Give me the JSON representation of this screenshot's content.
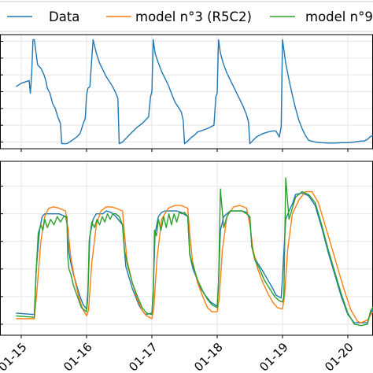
{
  "chart_data": [
    {
      "type": "line",
      "title": "",
      "xlabel": "",
      "ylabel": "",
      "x_ticks": [
        "01-15",
        "01-16",
        "01-17",
        "01-18",
        "01-19",
        "01-20"
      ],
      "grid": true,
      "legend": {
        "placement": "top",
        "entries": [
          "Data",
          "model n°3 (R5C2)",
          "model n°9"
        ]
      },
      "series": [
        {
          "name": "Data",
          "color": "#1f77b4",
          "x": [
            -0.08,
            0,
            0.12,
            0.14,
            0.16,
            0.18,
            0.2,
            0.25,
            0.3,
            0.35,
            0.38,
            0.4,
            0.44,
            0.48,
            0.52,
            0.56,
            0.6,
            0.62,
            0.7,
            0.78,
            0.85,
            0.9,
            0.95,
            0.98,
            1,
            1.02,
            1.05,
            1.1,
            1.15,
            1.2,
            1.25,
            1.3,
            1.35,
            1.4,
            1.45,
            1.48,
            1.5,
            1.55,
            1.6,
            1.65,
            1.7,
            1.78,
            1.85,
            1.9,
            1.95,
            1.98,
            2,
            2.02,
            2.05,
            2.1,
            2.15,
            2.2,
            2.25,
            2.3,
            2.35,
            2.4,
            2.45,
            2.48,
            2.5,
            2.55,
            2.6,
            2.65,
            2.7,
            2.78,
            2.85,
            2.9,
            2.95,
            2.98,
            3,
            3.02,
            3.05,
            3.1,
            3.15,
            3.2,
            3.25,
            3.3,
            3.35,
            3.4,
            3.45,
            3.48,
            3.5,
            3.55,
            3.6,
            3.65,
            3.7,
            3.78,
            3.85,
            3.9,
            3.95,
            3.98,
            4,
            4.05,
            4.1,
            4.15,
            4.2,
            4.25,
            4.3,
            4.35,
            4.4,
            4.5,
            4.6,
            4.7,
            4.8,
            4.9,
            5,
            5.1,
            5.2,
            5.25,
            5.3,
            5.35,
            5.45
          ],
          "y": [
            -0.1,
            0,
            0.08,
            -0.3,
            0.3,
            1.3,
            1.3,
            0.55,
            0.45,
            0.25,
            0.05,
            -0.15,
            -0.3,
            -0.6,
            -0.75,
            -1.0,
            -1.2,
            -1.8,
            -1.8,
            -1.7,
            -1.6,
            -1.5,
            -1.2,
            -1.05,
            -0.35,
            -0.15,
            -0.1,
            1.3,
            0.9,
            0.6,
            0.4,
            0.2,
            0.05,
            -0.1,
            -0.3,
            -0.45,
            -1.8,
            -1.75,
            -1.65,
            -1.55,
            -1.45,
            -1.3,
            -1.2,
            -1.1,
            -1.0,
            -0.4,
            -0.25,
            1.3,
            0.9,
            0.6,
            0.35,
            0.15,
            -0.05,
            -0.3,
            -0.55,
            -0.7,
            -0.85,
            -1.1,
            -1.8,
            -1.72,
            -1.62,
            -1.55,
            -1.45,
            -1.4,
            -1.35,
            -1.3,
            -1.25,
            -0.4,
            -0.3,
            1.3,
            0.9,
            0.55,
            0.3,
            0.1,
            -0.1,
            -0.3,
            -0.5,
            -0.7,
            -0.95,
            -1.15,
            -1.8,
            -1.7,
            -1.6,
            -1.55,
            -1.5,
            -1.45,
            -1.42,
            -1.42,
            -1.6,
            -1.3,
            1.3,
            0.6,
            0.1,
            -0.35,
            -0.75,
            -1.1,
            -1.35,
            -1.55,
            -1.7,
            -1.75,
            -1.77,
            -1.78,
            -1.78,
            -1.77,
            -1.77,
            -1.75,
            -1.72,
            -1.72,
            -1.67,
            -1.58,
            -1.55
          ]
        }
      ]
    },
    {
      "type": "line",
      "title": "",
      "xlabel": "",
      "ylabel": "",
      "x_ticks": [
        "01-15",
        "01-16",
        "01-17",
        "01-18",
        "01-19",
        "01-20"
      ],
      "grid": true,
      "series": [
        {
          "name": "Data",
          "color": "#1f77b4",
          "x": [
            -0.08,
            0.2,
            0.23,
            0.28,
            0.32,
            0.36,
            0.42,
            0.5,
            0.58,
            0.68,
            0.72,
            0.73,
            0.76,
            0.8,
            0.85,
            0.9,
            0.95,
            1.0,
            1.02,
            1.05,
            1.1,
            1.15,
            1.2,
            1.25,
            1.3,
            1.38,
            1.45,
            1.55,
            1.58,
            1.6,
            1.65,
            1.7,
            1.75,
            1.8,
            1.85,
            1.9,
            2.0,
            2.02,
            2.05,
            2.1,
            2.15,
            2.2,
            2.25,
            2.3,
            2.38,
            2.45,
            2.55,
            2.58,
            2.6,
            2.63,
            2.68,
            2.72,
            2.8,
            2.9,
            3.0,
            3.02,
            3.05,
            3.1,
            3.15,
            3.2,
            3.3,
            3.38,
            3.45,
            3.5,
            3.53,
            3.58,
            3.62,
            3.68,
            3.75,
            3.8,
            3.85,
            3.9,
            3.98,
            4.0,
            4.05,
            4.1,
            4.15,
            4.2,
            4.3,
            4.4,
            4.5,
            4.6,
            4.7,
            4.8,
            4.9,
            5.0,
            5.1,
            5.2,
            5.3,
            5.35,
            5.45
          ],
          "y": [
            17.4,
            17.35,
            19.0,
            20.4,
            20.9,
            21.0,
            21.0,
            21.0,
            21.0,
            20.9,
            20.4,
            19.6,
            19.2,
            18.8,
            18.4,
            18.0,
            17.7,
            17.55,
            18.2,
            20.2,
            20.8,
            21.0,
            21.0,
            21.0,
            21.1,
            21.05,
            20.9,
            20.6,
            19.7,
            19.1,
            18.7,
            18.3,
            18.0,
            17.7,
            17.5,
            17.35,
            17.4,
            18.2,
            20.3,
            20.9,
            21.05,
            21.1,
            21.1,
            21.1,
            21.1,
            21.05,
            20.9,
            19.6,
            19.3,
            19.0,
            18.7,
            18.4,
            18.1,
            17.8,
            17.65,
            18.5,
            20.4,
            20.9,
            21.0,
            21.1,
            21.1,
            21.1,
            21.05,
            20.8,
            19.8,
            19.4,
            19.2,
            19.0,
            18.7,
            18.5,
            18.3,
            18.05,
            17.95,
            18.7,
            20.8,
            21.1,
            21.35,
            21.7,
            21.75,
            21.65,
            21.3,
            20.5,
            19.6,
            18.8,
            18.0,
            17.35,
            17.05,
            17.05,
            17.05,
            17.4,
            17.8
          ]
        },
        {
          "name": "model n°3 (R5C2)",
          "color": "#ff7f0e",
          "x": [
            -0.08,
            0.2,
            0.24,
            0.3,
            0.36,
            0.42,
            0.5,
            0.58,
            0.68,
            0.72,
            0.76,
            0.82,
            0.88,
            0.94,
            1.0,
            1.03,
            1.08,
            1.15,
            1.22,
            1.3,
            1.38,
            1.45,
            1.55,
            1.58,
            1.62,
            1.7,
            1.78,
            1.85,
            1.92,
            2.0,
            2.03,
            2.08,
            2.15,
            2.25,
            2.35,
            2.45,
            2.55,
            2.58,
            2.62,
            2.7,
            2.78,
            2.85,
            2.92,
            3.0,
            3.03,
            3.08,
            3.15,
            3.25,
            3.35,
            3.45,
            3.5,
            3.55,
            3.62,
            3.7,
            3.78,
            3.85,
            3.92,
            4.0,
            4.03,
            4.08,
            4.15,
            4.25,
            4.35,
            4.45,
            4.55,
            4.65,
            4.75,
            4.85,
            4.95,
            5.05,
            5.15,
            5.2,
            5.3,
            5.4,
            5.45
          ],
          "y": [
            17.2,
            17.2,
            18.2,
            20.0,
            20.9,
            21.2,
            21.25,
            21.2,
            21.1,
            20.3,
            19.4,
            18.6,
            18.0,
            17.55,
            17.3,
            17.5,
            19.2,
            20.6,
            21.1,
            21.25,
            21.25,
            21.2,
            21.1,
            20.3,
            19.3,
            18.5,
            17.9,
            17.5,
            17.3,
            17.2,
            17.6,
            19.4,
            20.8,
            21.2,
            21.3,
            21.3,
            21.2,
            20.3,
            19.3,
            18.5,
            18.0,
            17.6,
            17.45,
            17.45,
            17.9,
            19.7,
            20.9,
            21.25,
            21.3,
            21.2,
            20.6,
            19.7,
            19.0,
            18.5,
            18.1,
            17.8,
            17.6,
            17.55,
            18.0,
            19.7,
            21.0,
            21.5,
            21.8,
            21.8,
            21.4,
            20.6,
            19.8,
            19.0,
            18.2,
            17.5,
            17.1,
            17.05,
            17.15,
            17.5,
            17.75
          ]
        },
        {
          "name": "model n°9",
          "color": "#2ca02c",
          "x": [
            -0.08,
            0.2,
            0.23,
            0.26,
            0.3,
            0.33,
            0.36,
            0.4,
            0.45,
            0.5,
            0.55,
            0.6,
            0.65,
            0.7,
            0.71,
            0.73,
            0.76,
            0.8,
            0.86,
            0.92,
            1.0,
            1.02,
            1.04,
            1.08,
            1.12,
            1.16,
            1.2,
            1.24,
            1.28,
            1.32,
            1.36,
            1.4,
            1.45,
            1.5,
            1.55,
            1.58,
            1.62,
            1.7,
            1.78,
            1.85,
            1.92,
            2.0,
            2.02,
            2.04,
            2.07,
            2.1,
            2.14,
            2.18,
            2.22,
            2.26,
            2.3,
            2.34,
            2.38,
            2.42,
            2.46,
            2.5,
            2.55,
            2.58,
            2.62,
            2.7,
            2.78,
            2.85,
            2.92,
            3.0,
            3.02,
            3.05,
            3.1,
            3.15,
            3.2,
            3.3,
            3.38,
            3.45,
            3.5,
            3.53,
            3.58,
            3.65,
            3.72,
            3.8,
            3.88,
            3.95,
            4.0,
            4.02,
            4.05,
            4.1,
            4.15,
            4.2,
            4.3,
            4.4,
            4.5,
            4.6,
            4.7,
            4.8,
            4.9,
            5.0,
            5.1,
            5.2,
            5.3,
            5.35,
            5.45
          ],
          "y": [
            17.3,
            17.25,
            19.0,
            20.3,
            20.6,
            20.4,
            20.8,
            20.5,
            20.8,
            20.6,
            20.9,
            20.7,
            20.9,
            20.9,
            19.5,
            19.0,
            18.8,
            18.4,
            18.0,
            17.6,
            17.45,
            18.0,
            20.0,
            20.7,
            20.5,
            20.8,
            20.6,
            20.9,
            20.7,
            21.0,
            20.8,
            21.0,
            21.0,
            20.9,
            20.6,
            19.7,
            19.2,
            18.5,
            18.0,
            17.6,
            17.4,
            17.35,
            18.0,
            20.4,
            20.2,
            20.8,
            20.4,
            20.9,
            20.5,
            21.0,
            20.6,
            21.0,
            20.7,
            21.05,
            21.0,
            21.05,
            20.9,
            19.5,
            19.2,
            18.6,
            18.2,
            17.9,
            17.7,
            17.6,
            18.4,
            21.9,
            20.5,
            20.9,
            21.1,
            21.1,
            21.1,
            21.0,
            20.9,
            19.8,
            19.3,
            19.0,
            18.6,
            18.3,
            18.0,
            17.85,
            17.8,
            18.0,
            22.3,
            20.8,
            21.2,
            21.6,
            21.8,
            21.7,
            21.4,
            20.6,
            19.7,
            18.9,
            18.1,
            17.4,
            17.0,
            16.95,
            17.0,
            17.5,
            17.8
          ]
        }
      ]
    }
  ]
}
